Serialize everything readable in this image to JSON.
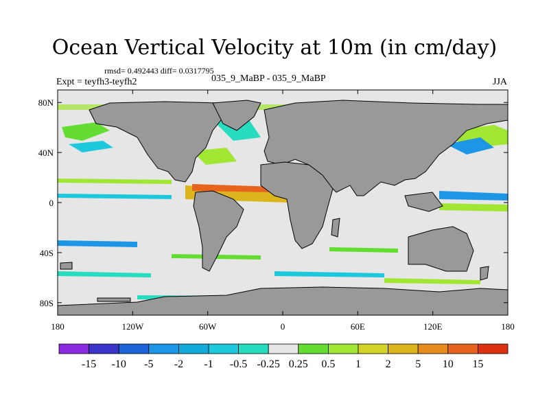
{
  "title": "Ocean Vertical Velocity at 10m (in cm/day)",
  "stats_line": "rmsd= 0.492443 diff= 0.0317795",
  "left_label": "Expt = teyfh3-teyfh2",
  "center_label": "035_9_MaBP - 035_9_MaBP",
  "right_label": "JJA",
  "chart_data": {
    "type": "heatmap",
    "title": "Ocean Vertical Velocity at 10m (in cm/day)",
    "variable": "Ocean vertical velocity at 10m",
    "units": "cm/day",
    "season": "JJA",
    "x_axis": {
      "range": [
        -180,
        180
      ],
      "ticks": [
        -180,
        -120,
        -60,
        0,
        60,
        120,
        180
      ],
      "tick_labels": [
        "180",
        "120W",
        "60W",
        "0",
        "60E",
        "120E",
        "180"
      ]
    },
    "y_axis": {
      "range": [
        -90,
        90
      ],
      "ticks": [
        80,
        40,
        0,
        -40,
        -80
      ],
      "tick_labels": [
        "80N",
        "40N",
        "0",
        "40S",
        "80S"
      ]
    },
    "colorbar": {
      "labels": [
        "-15",
        "-10",
        "-5",
        "-2",
        "-1",
        "-0.5",
        "-0.25",
        "0.25",
        "0.5",
        "1",
        "2",
        "5",
        "10",
        "15"
      ],
      "colors": [
        "#8a2be2",
        "#3a35c8",
        "#1e64d8",
        "#1e96e6",
        "#14aadc",
        "#1ec8dc",
        "#28dcc0",
        "#e6e6e6",
        "#64dc32",
        "#a0e632",
        "#d2d228",
        "#dcb41e",
        "#e68c1e",
        "#e6641e",
        "#dc3214"
      ]
    },
    "land_color": "#999999",
    "ocean_background_color": "#e6e6e6"
  }
}
